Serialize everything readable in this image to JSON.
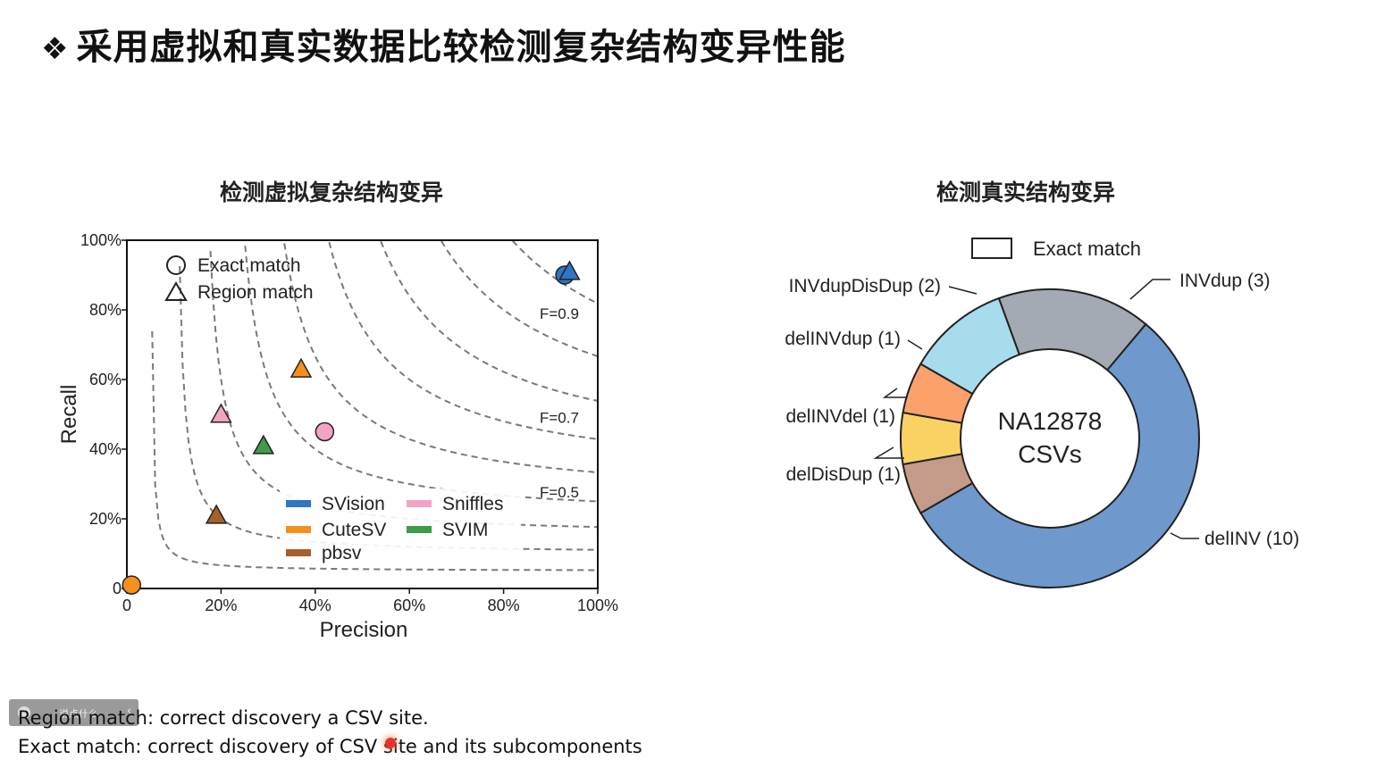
{
  "slide": {
    "title_bullet": "❖",
    "title": "采用虚拟和真实数据比较检测复杂结构变异性能",
    "notes": {
      "region": "Region match: correct discovery a CSV site.",
      "exact": "Exact match: correct discovery of CSV site and its subcomponents"
    },
    "overlay": {
      "text": "说点什么",
      "chevron": "‹"
    }
  },
  "chart_data": [
    {
      "type": "scatter",
      "title": "检测虚拟复杂结构变异",
      "xlabel": "Precision",
      "ylabel": "Recall",
      "xlim": [
        0,
        100
      ],
      "ylim": [
        0,
        100
      ],
      "x_ticks": [
        "0",
        "20%",
        "40%",
        "60%",
        "80%",
        "100%"
      ],
      "y_ticks": [
        "0",
        "20%",
        "40%",
        "60%",
        "80%",
        "100%"
      ],
      "grid": false,
      "f_score_contours": [
        0.1,
        0.2,
        0.3,
        0.4,
        0.5,
        0.6,
        0.7,
        0.8,
        0.9
      ],
      "f_score_labels": [
        "F=0.9",
        "F=0.7",
        "F=0.5"
      ],
      "marker_legend": [
        {
          "shape": "circle",
          "label": "Exact match"
        },
        {
          "shape": "triangle",
          "label": "Region match"
        }
      ],
      "color_legend": [
        {
          "name": "SVision",
          "color": "#2f75c6"
        },
        {
          "name": "Sniffles",
          "color": "#f4a3c4"
        },
        {
          "name": "CuteSV",
          "color": "#f5901e"
        },
        {
          "name": "SVIM",
          "color": "#3e9b4a"
        },
        {
          "name": "pbsv",
          "color": "#a6602c"
        }
      ],
      "legend_position": "bottom-right",
      "points": [
        {
          "tool": "SVision",
          "match": "Exact match",
          "x": 93,
          "y": 90,
          "color": "#2f75c6"
        },
        {
          "tool": "SVision",
          "match": "Region match",
          "x": 94,
          "y": 91,
          "color": "#2f75c6"
        },
        {
          "tool": "CuteSV",
          "match": "Region match",
          "x": 37,
          "y": 63,
          "color": "#f5901e"
        },
        {
          "tool": "Sniffles",
          "match": "Region match",
          "x": 20,
          "y": 50,
          "color": "#f4a3c4"
        },
        {
          "tool": "Sniffles",
          "match": "Exact match",
          "x": 42,
          "y": 45,
          "color": "#f4a3c4"
        },
        {
          "tool": "SVIM",
          "match": "Region match",
          "x": 29,
          "y": 41,
          "color": "#3e9b4a"
        },
        {
          "tool": "pbsv",
          "match": "Region match",
          "x": 19,
          "y": 21,
          "color": "#a6602c"
        },
        {
          "tool": "CuteSV",
          "match": "Exact match",
          "x": 1,
          "y": 1,
          "color": "#f5901e"
        }
      ]
    },
    {
      "type": "pie",
      "title": "检测真实结构变异",
      "center_label": [
        "NA12878",
        "CSVs"
      ],
      "legend": [
        {
          "label": "Exact match",
          "style": "outlined box"
        }
      ],
      "slices": [
        {
          "label": "INVdup (3)",
          "value": 3,
          "color": "#a3aab3"
        },
        {
          "label": "delINV (10)",
          "value": 10,
          "color": "#6f99cc"
        },
        {
          "label": "delDisDup (1)",
          "value": 1,
          "color": "#c49a88"
        },
        {
          "label": "delINVdel (1)",
          "value": 1,
          "color": "#fad264"
        },
        {
          "label": "delINVdup (1)",
          "value": 1,
          "color": "#fca16c"
        },
        {
          "label": "INVdupDisDup (2)",
          "value": 2,
          "color": "#a6dcec"
        }
      ]
    }
  ]
}
